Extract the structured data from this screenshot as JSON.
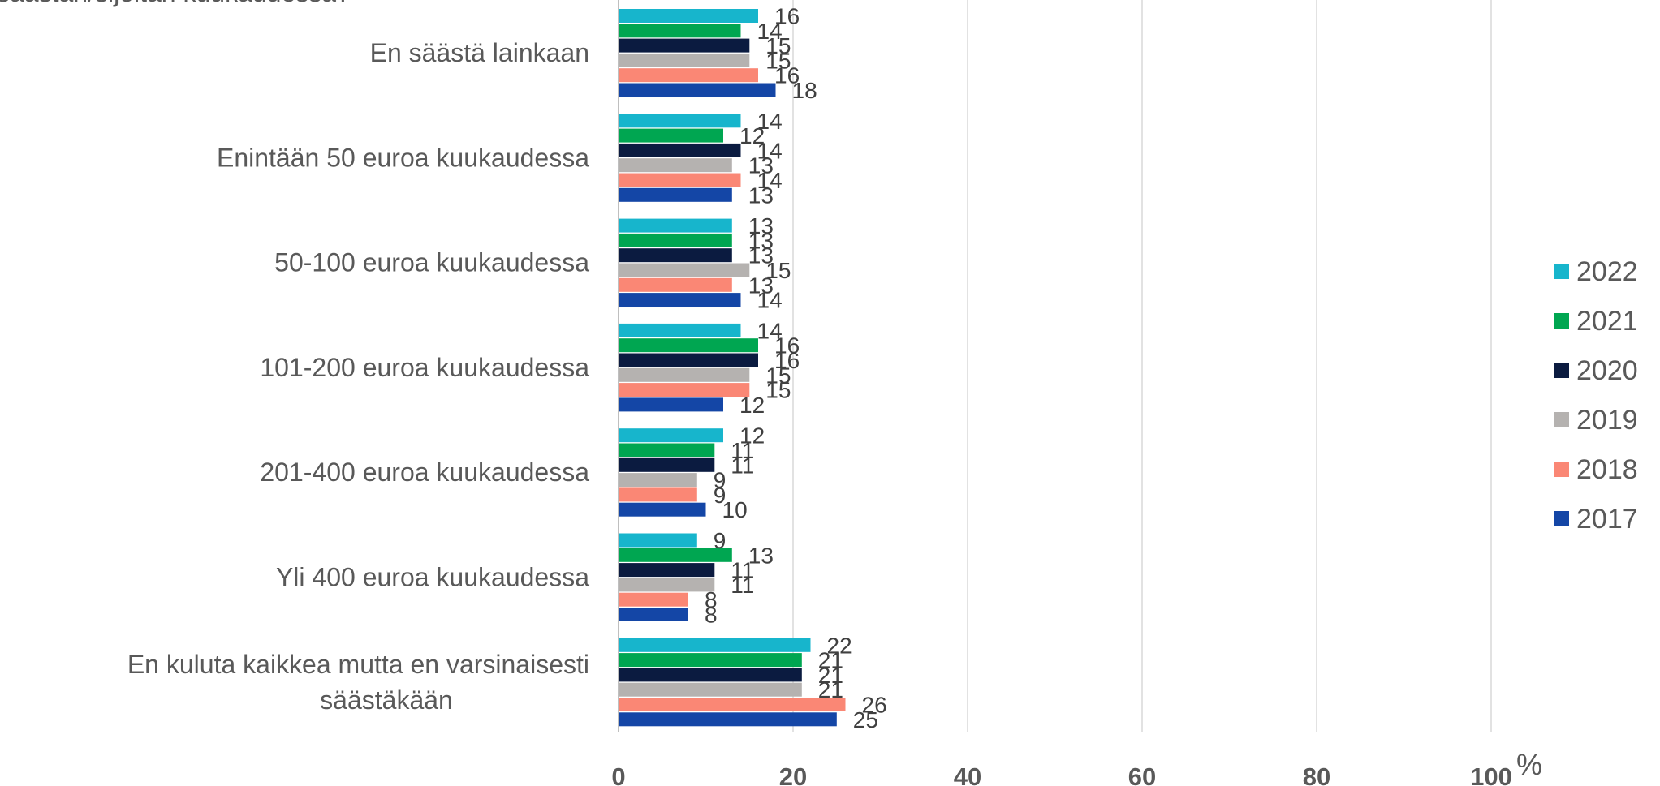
{
  "chart_data": {
    "type": "bar",
    "orientation": "horizontal",
    "title": "säästän/sijoitan kuukaudessa?",
    "unit": "%",
    "categories": [
      "En säästä lainkaan",
      "Enintään 50 euroa kuukaudessa",
      "50-100 euroa kuukaudessa",
      "101-200 euroa kuukaudessa",
      "201-400 euroa kuukaudessa",
      "Yli 400 euroa kuukaudessa",
      "En kuluta kaikkea mutta en varsinaisesti säästäkään"
    ],
    "category_lines": [
      [
        "En säästä lainkaan"
      ],
      [
        "Enintään 50 euroa kuukaudessa"
      ],
      [
        "50-100 euroa kuukaudessa"
      ],
      [
        "101-200 euroa kuukaudessa"
      ],
      [
        "201-400 euroa kuukaudessa"
      ],
      [
        "Yli 400 euroa kuukaudessa"
      ],
      [
        "En kuluta kaikkea mutta en varsinaisesti",
        "säästäkään"
      ]
    ],
    "series": [
      {
        "name": "2022",
        "color": "#17B5CC",
        "values": [
          16,
          14,
          13,
          14,
          12,
          9,
          22
        ]
      },
      {
        "name": "2021",
        "color": "#00A651",
        "values": [
          14,
          12,
          13,
          16,
          11,
          13,
          21
        ]
      },
      {
        "name": "2020",
        "color": "#0B1B40",
        "values": [
          15,
          14,
          13,
          16,
          11,
          11,
          21
        ]
      },
      {
        "name": "2019",
        "color": "#B5B2B0",
        "values": [
          15,
          13,
          15,
          15,
          9,
          11,
          21
        ]
      },
      {
        "name": "2018",
        "color": "#FA8775",
        "values": [
          16,
          14,
          13,
          15,
          9,
          8,
          26
        ]
      },
      {
        "name": "2017",
        "color": "#1446A6",
        "values": [
          18,
          13,
          14,
          12,
          10,
          8,
          25
        ]
      }
    ],
    "xlim": [
      0,
      100
    ],
    "xticks": [
      "0",
      "20",
      "40",
      "60",
      "80",
      "100"
    ],
    "grid": true,
    "legend_position": "right"
  }
}
